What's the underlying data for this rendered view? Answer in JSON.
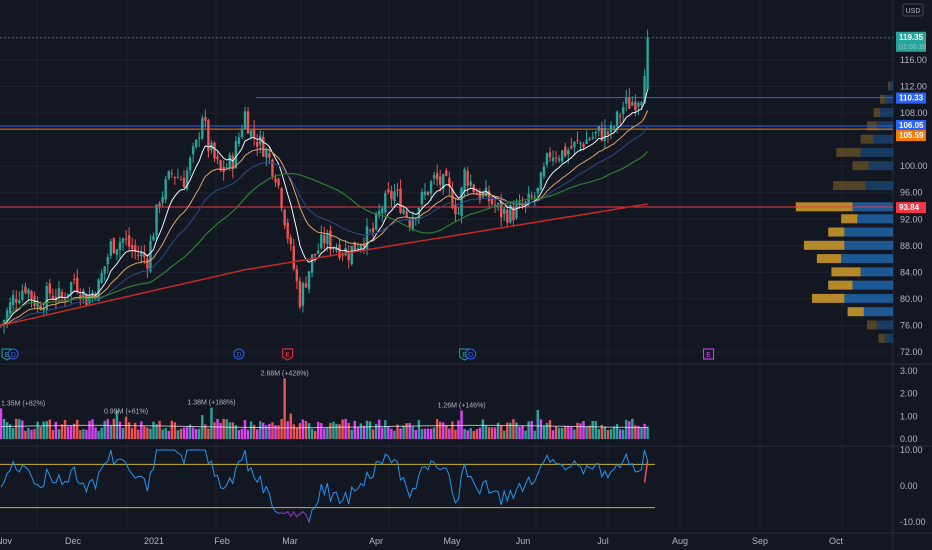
{
  "currency": "USD",
  "price_axis": {
    "labels": [
      "116.00",
      "112.00",
      "108.00",
      "100.00",
      "96.00",
      "92.00",
      "88.00",
      "84.00",
      "80.00",
      "76.00",
      "72.00"
    ],
    "values": [
      116,
      112,
      108,
      100,
      96,
      92,
      88,
      84,
      80,
      76,
      72
    ],
    "top_partial": "1"
  },
  "price_tags": [
    {
      "label": "119.35",
      "sub": "01:00:39",
      "value": 119.35,
      "color": "#26a69a"
    },
    {
      "label": "110.33",
      "value": 110.33,
      "color": "#2962ff"
    },
    {
      "label": "106.05",
      "value": 106.05,
      "color": "#2962ff"
    },
    {
      "label": "105.59",
      "value": 105.59,
      "color": "#f57c00"
    },
    {
      "label": "93.84",
      "value": 93.84,
      "color": "#f23645"
    }
  ],
  "x_axis": {
    "labels": [
      "Nov",
      "Dec",
      "2021",
      "Feb",
      "Mar",
      "Apr",
      "May",
      "Jun",
      "Jul",
      "Aug",
      "Sep",
      "Oct"
    ]
  },
  "volume_axis": {
    "labels": [
      "3.00",
      "2.00",
      "1.00",
      "0.00"
    ],
    "values": [
      3,
      2,
      1,
      0
    ]
  },
  "volume_annotations": [
    {
      "label": "1.35M (+82%)",
      "bar": 0
    },
    {
      "label": "0.99M (+61%)",
      "bar": 41
    },
    {
      "label": "1.38M (+188%)",
      "bar": 69
    },
    {
      "label": "2.68M (+428%)",
      "bar": 93
    },
    {
      "label": "1.26M (+146%)",
      "bar": 151
    }
  ],
  "osc_axis": {
    "labels": [
      "10.00",
      "0.00",
      "-10.00"
    ],
    "values": [
      10,
      0,
      -10
    ]
  },
  "event_markers": [
    {
      "label": "E",
      "type": "earnings",
      "color": "#26a69a",
      "bar": 2
    },
    {
      "label": "D",
      "type": "dividend",
      "color": "#2962ff",
      "bar": 4
    },
    {
      "label": "D",
      "type": "dividend",
      "color": "#2962ff",
      "bar": 78
    },
    {
      "label": "E",
      "type": "earnings",
      "color": "#f23645",
      "bar": 94
    },
    {
      "label": "E",
      "type": "earnings",
      "color": "#26a69a",
      "bar": 152
    },
    {
      "label": "D",
      "type": "dividend",
      "color": "#2962ff",
      "bar": 154
    },
    {
      "label": "E",
      "type": "earnings-upcoming",
      "color": "#e040fb",
      "bar": 232
    }
  ],
  "colors": {
    "up": "#26a69a",
    "down": "#ef5350",
    "ema_fast": "#f0f3fa",
    "ema_mid": "#e0a36a",
    "ema_slow": "#2a4a8a",
    "sma_50": "#2e7d32",
    "sma_200": "#c62828",
    "osc": "#2196f3",
    "osc_band": "#c9b22a"
  },
  "chart_data": {
    "type": "candlestick",
    "title": "",
    "y_range": [
      70,
      124
    ],
    "horizontal_levels": [
      {
        "value": 110.33,
        "color": "#2962ff"
      },
      {
        "value": 106.05,
        "color": "#2962ff"
      },
      {
        "value": 105.59,
        "color": "#f57c00"
      },
      {
        "value": 93.84,
        "color": "#f23645"
      }
    ],
    "price_path": [
      [
        0,
        76
      ],
      [
        4,
        80
      ],
      [
        8,
        82
      ],
      [
        12,
        79
      ],
      [
        16,
        81
      ],
      [
        20,
        80
      ],
      [
        24,
        83
      ],
      [
        28,
        80
      ],
      [
        32,
        82
      ],
      [
        36,
        88
      ],
      [
        40,
        89
      ],
      [
        44,
        87
      ],
      [
        48,
        86
      ],
      [
        52,
        95
      ],
      [
        56,
        99
      ],
      [
        60,
        98
      ],
      [
        64,
        103
      ],
      [
        66,
        108
      ],
      [
        68,
        103
      ],
      [
        72,
        99
      ],
      [
        76,
        101
      ],
      [
        80,
        108
      ],
      [
        82,
        105
      ],
      [
        86,
        103
      ],
      [
        90,
        99
      ],
      [
        92,
        95
      ],
      [
        95,
        87
      ],
      [
        98,
        80
      ],
      [
        102,
        86
      ],
      [
        106,
        89
      ],
      [
        110,
        88
      ],
      [
        114,
        87
      ],
      [
        118,
        89
      ],
      [
        122,
        90
      ],
      [
        125,
        94
      ],
      [
        129,
        96
      ],
      [
        134,
        92
      ],
      [
        138,
        95
      ],
      [
        142,
        98
      ],
      [
        146,
        97
      ],
      [
        150,
        93
      ],
      [
        152,
        99
      ],
      [
        156,
        96
      ],
      [
        160,
        95
      ],
      [
        164,
        93
      ],
      [
        168,
        93
      ],
      [
        172,
        94
      ],
      [
        176,
        96
      ],
      [
        180,
        102
      ],
      [
        184,
        102
      ],
      [
        188,
        103
      ],
      [
        192,
        104
      ],
      [
        196,
        105
      ],
      [
        200,
        105
      ],
      [
        204,
        109
      ],
      [
        208,
        110
      ],
      [
        210,
        111
      ],
      [
        212,
        119.35
      ]
    ],
    "volume_profile": [
      {
        "price": 97.0,
        "up": 0.2,
        "down": 0.17
      },
      {
        "price": 93.8,
        "up": 0.35,
        "down": 0.25
      },
      {
        "price": 92.0,
        "up": 0.1,
        "down": 0.22
      },
      {
        "price": 90.0,
        "up": 0.1,
        "down": 0.3
      },
      {
        "price": 88.0,
        "up": 0.25,
        "down": 0.3
      },
      {
        "price": 86.0,
        "up": 0.15,
        "down": 0.32
      },
      {
        "price": 84.0,
        "up": 0.18,
        "down": 0.2
      },
      {
        "price": 82.0,
        "up": 0.15,
        "down": 0.25
      },
      {
        "price": 80.0,
        "up": 0.2,
        "down": 0.3
      },
      {
        "price": 78.0,
        "up": 0.1,
        "down": 0.18
      },
      {
        "price": 76.0,
        "up": 0.06,
        "down": 0.1
      },
      {
        "price": 74.0,
        "up": 0.04,
        "down": 0.05
      },
      {
        "price": 100.0,
        "up": 0.1,
        "down": 0.15
      },
      {
        "price": 102.0,
        "up": 0.15,
        "down": 0.2
      },
      {
        "price": 104.0,
        "up": 0.08,
        "down": 0.12
      },
      {
        "price": 106.0,
        "up": 0.06,
        "down": 0.1
      },
      {
        "price": 108.0,
        "up": 0.04,
        "down": 0.08
      },
      {
        "price": 110.0,
        "up": 0.03,
        "down": 0.05
      },
      {
        "price": 112.0,
        "up": 0.01,
        "down": 0.02
      }
    ]
  }
}
